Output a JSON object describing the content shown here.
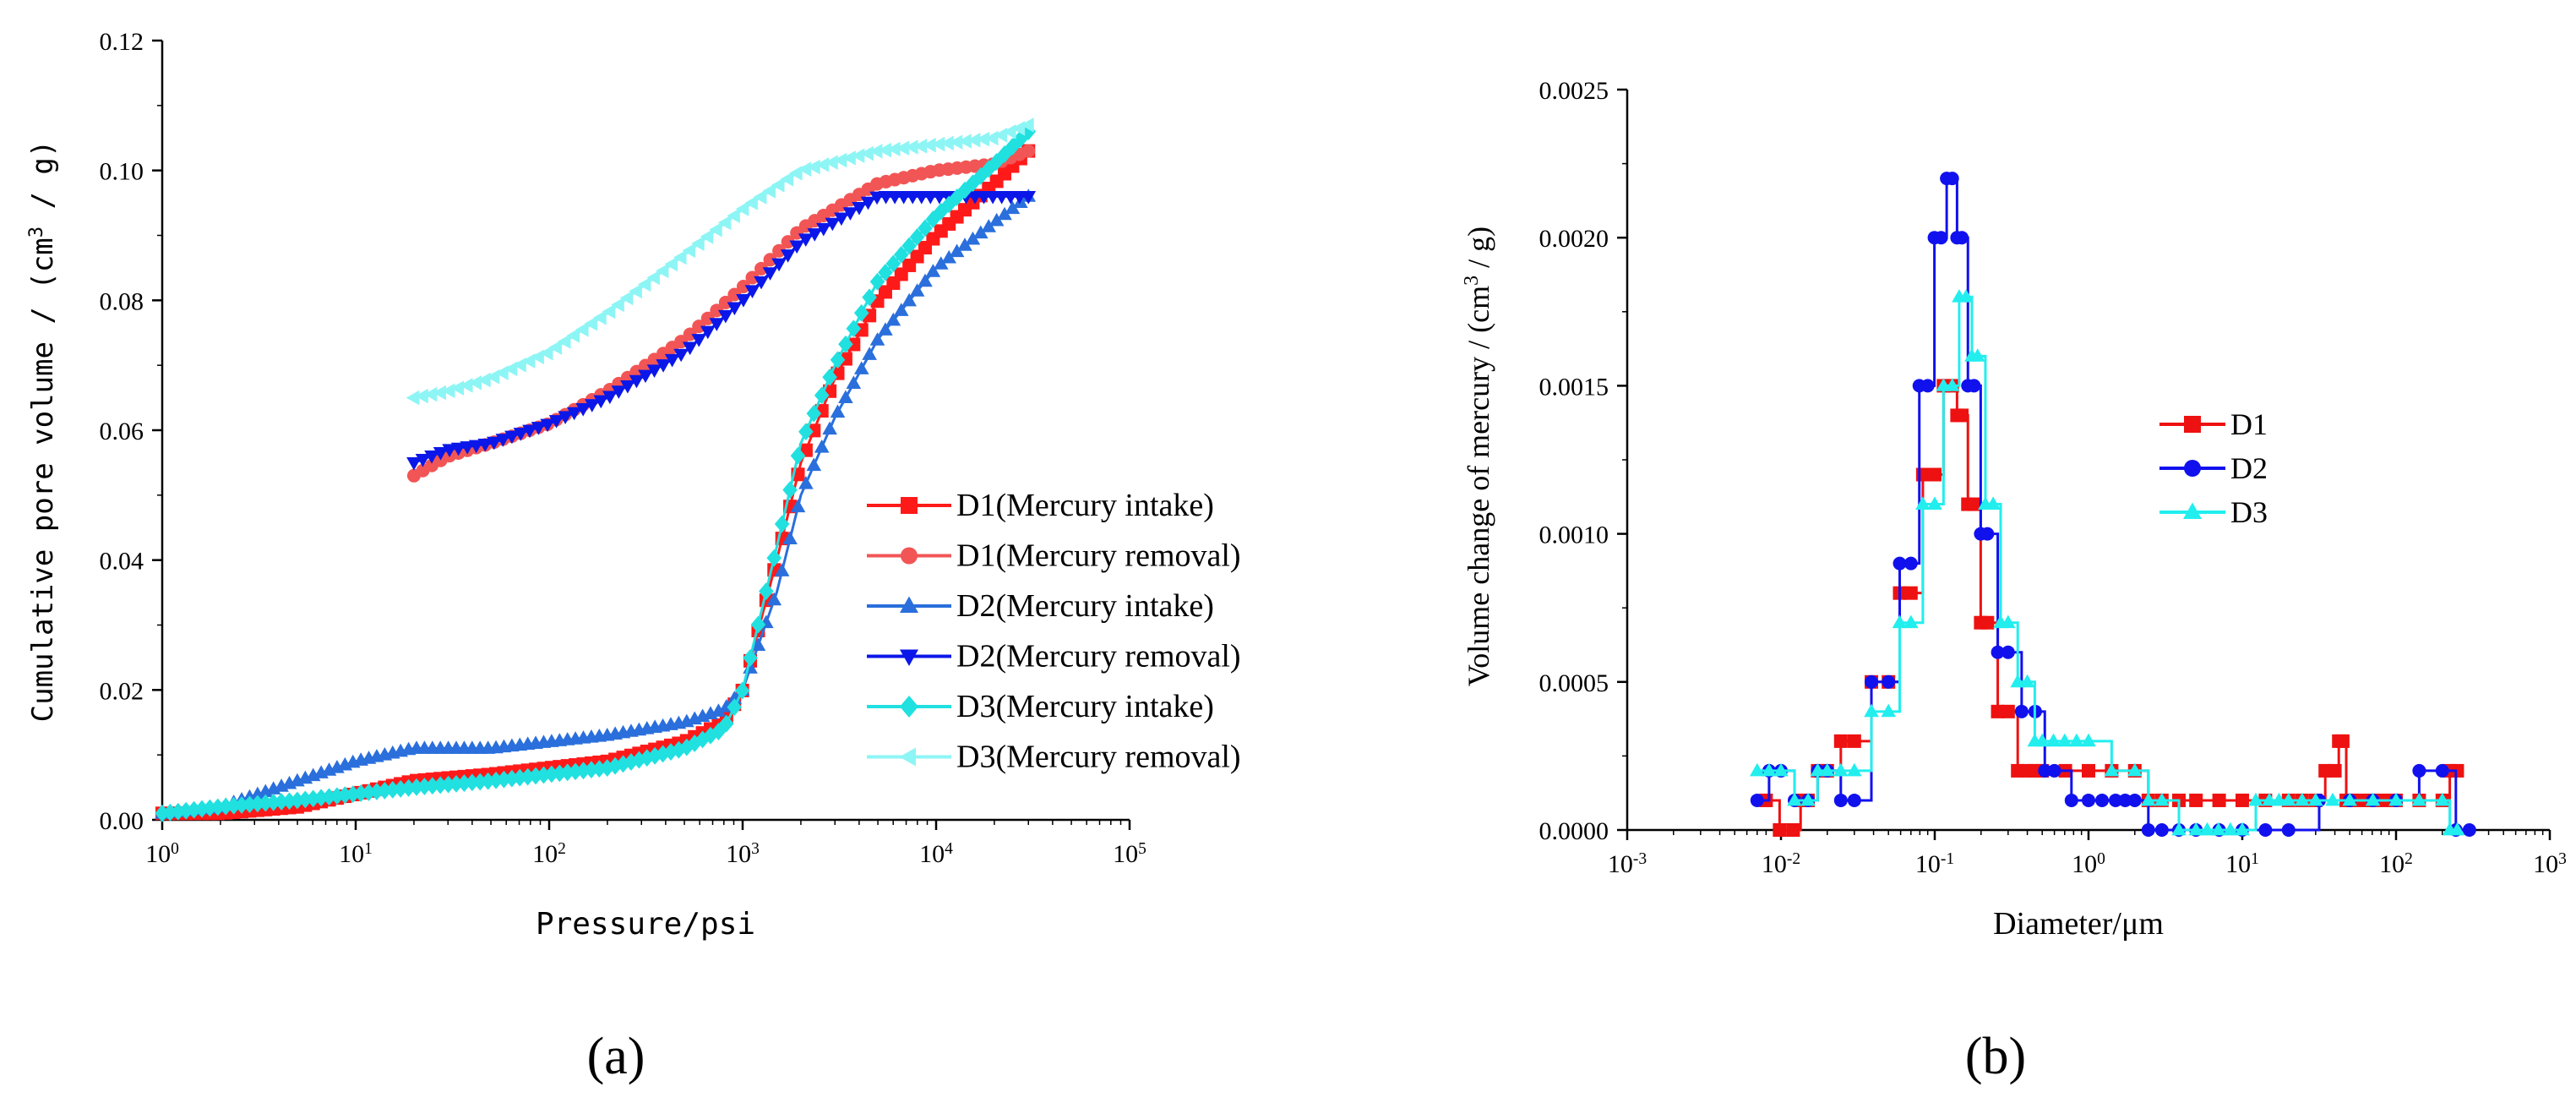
{
  "panel_labels": [
    "(a)",
    "(b)"
  ],
  "colors": {
    "d1_intake": "#ff1a1a",
    "d1_removal": "#f25555",
    "d2_intake": "#2a6fdc",
    "d2_removal": "#0b17e8",
    "d3_intake": "#21e0e0",
    "d3_removal": "#8ef5f5",
    "b_d1": "#ee1111",
    "b_d2": "#1111ee",
    "b_d3": "#22eeee"
  },
  "chart_data": [
    {
      "type": "line",
      "panel": "a",
      "title": "",
      "xlabel": "Pressure/psi",
      "ylabel": "Cumulative pore volume / (cm3 / g)",
      "ylabel_parts": {
        "pre": "Cumulative pore volume / (cm",
        "sup": "3",
        "post": " / g)"
      },
      "xscale": "log",
      "xlim": [
        1,
        100000
      ],
      "ylim": [
        0,
        0.12
      ],
      "x_ticks": [
        {
          "base": "10",
          "exp": "0",
          "value": 1
        },
        {
          "base": "10",
          "exp": "1",
          "value": 10
        },
        {
          "base": "10",
          "exp": "2",
          "value": 100
        },
        {
          "base": "10",
          "exp": "3",
          "value": 1000
        },
        {
          "base": "10",
          "exp": "4",
          "value": 10000
        },
        {
          "base": "10",
          "exp": "5",
          "value": 100000
        }
      ],
      "y_ticks": [
        "0.00",
        "0.02",
        "0.04",
        "0.06",
        "0.08",
        "0.10",
        "0.12"
      ],
      "legend_position": "right",
      "series": [
        {
          "name": "D1(Mercury intake)",
          "marker": "square",
          "color_key": "d1_intake",
          "x": [
            1,
            2,
            5,
            10,
            20,
            50,
            100,
            200,
            500,
            800,
            1000,
            1500,
            2000,
            3000,
            5000,
            10000,
            20000,
            30000
          ],
          "y": [
            0.001,
            0.001,
            0.002,
            0.004,
            0.006,
            0.007,
            0.008,
            0.009,
            0.012,
            0.015,
            0.02,
            0.04,
            0.055,
            0.068,
            0.08,
            0.09,
            0.098,
            0.103
          ]
        },
        {
          "name": "D1(Mercury removal)",
          "marker": "circle",
          "color_key": "d1_removal",
          "x": [
            20,
            30,
            50,
            100,
            200,
            500,
            1000,
            2000,
            5000,
            10000,
            20000,
            30000
          ],
          "y": [
            0.053,
            0.056,
            0.058,
            0.061,
            0.066,
            0.074,
            0.082,
            0.091,
            0.098,
            0.1,
            0.101,
            0.103
          ]
        },
        {
          "name": "D2(Mercury intake)",
          "marker": "triangle",
          "color_key": "d2_intake",
          "x": [
            1,
            2,
            5,
            10,
            20,
            30,
            50,
            100,
            200,
            500,
            800,
            1000,
            1500,
            2000,
            3000,
            5000,
            10000,
            20000,
            30000
          ],
          "y": [
            0.001,
            0.002,
            0.006,
            0.009,
            0.011,
            0.011,
            0.011,
            0.012,
            0.013,
            0.015,
            0.017,
            0.02,
            0.035,
            0.05,
            0.062,
            0.074,
            0.085,
            0.092,
            0.096
          ]
        },
        {
          "name": "D2(Mercury removal)",
          "marker": "triangle-down",
          "color_key": "d2_removal",
          "x": [
            20,
            30,
            50,
            100,
            200,
            500,
            1000,
            2000,
            5000,
            10000,
            20000,
            30000
          ],
          "y": [
            0.055,
            0.057,
            0.058,
            0.061,
            0.065,
            0.072,
            0.08,
            0.089,
            0.096,
            0.096,
            0.096,
            0.096
          ]
        },
        {
          "name": "D3(Mercury intake)",
          "marker": "diamond",
          "color_key": "d3_intake",
          "x": [
            1,
            2,
            5,
            10,
            20,
            50,
            100,
            200,
            500,
            800,
            1000,
            1500,
            2000,
            3000,
            5000,
            10000,
            20000,
            30000
          ],
          "y": [
            0.001,
            0.002,
            0.003,
            0.004,
            0.005,
            0.006,
            0.007,
            0.008,
            0.011,
            0.014,
            0.02,
            0.042,
            0.058,
            0.07,
            0.083,
            0.093,
            0.101,
            0.106
          ]
        },
        {
          "name": "D3(Mercury removal)",
          "marker": "triangle-left",
          "color_key": "d3_removal",
          "x": [
            20,
            30,
            50,
            100,
            200,
            500,
            1000,
            2000,
            5000,
            10000,
            20000,
            30000
          ],
          "y": [
            0.065,
            0.066,
            0.068,
            0.072,
            0.078,
            0.087,
            0.094,
            0.1,
            0.103,
            0.104,
            0.105,
            0.107
          ]
        }
      ]
    },
    {
      "type": "line",
      "panel": "b",
      "title": "",
      "xlabel": "Diameter/μm",
      "ylabel": "Volume change of mercury / (cm3 / g)",
      "ylabel_parts": {
        "pre": "Volume change of mercury / (cm",
        "sup": "3",
        "post": " / g)"
      },
      "xscale": "log",
      "xlim": [
        0.001,
        1000
      ],
      "ylim": [
        0,
        0.0025
      ],
      "x_ticks": [
        {
          "base": "10",
          "exp": "-3",
          "value": 0.001
        },
        {
          "base": "10",
          "exp": "-2",
          "value": 0.01
        },
        {
          "base": "10",
          "exp": "-1",
          "value": 0.1
        },
        {
          "base": "10",
          "exp": "0",
          "value": 1
        },
        {
          "base": "10",
          "exp": "1",
          "value": 10
        },
        {
          "base": "10",
          "exp": "2",
          "value": 100
        },
        {
          "base": "10",
          "exp": "3",
          "value": 1000
        }
      ],
      "y_ticks": [
        "0.0000",
        "0.0005",
        "0.0010",
        "0.0015",
        "0.0020",
        "0.0025"
      ],
      "legend_position": "right",
      "series": [
        {
          "name": "D1",
          "marker": "square",
          "color_key": "b_d1",
          "x": [
            0.008,
            0.012,
            0.015,
            0.02,
            0.03,
            0.05,
            0.07,
            0.1,
            0.13,
            0.15,
            0.18,
            0.22,
            0.3,
            0.4,
            0.5,
            1,
            2,
            3,
            5,
            10,
            20,
            30,
            40,
            45,
            50,
            70,
            100,
            200,
            250
          ],
          "y": [
            0.0001,
            0.0,
            0.0001,
            0.0002,
            0.0003,
            0.0005,
            0.0008,
            0.0012,
            0.0015,
            0.0014,
            0.0011,
            0.0007,
            0.0004,
            0.0002,
            0.0002,
            0.0002,
            0.0002,
            0.0001,
            0.0001,
            0.0001,
            0.0001,
            0.0001,
            0.0002,
            0.0003,
            0.0001,
            0.0001,
            0.0001,
            0.0001,
            0.0002
          ]
        },
        {
          "name": "D2",
          "marker": "circle",
          "color_key": "b_d2",
          "x": [
            0.007,
            0.01,
            0.015,
            0.02,
            0.03,
            0.05,
            0.07,
            0.09,
            0.11,
            0.13,
            0.15,
            0.18,
            0.22,
            0.3,
            0.45,
            0.6,
            1,
            1.5,
            2,
            3,
            5,
            10,
            20,
            50,
            100,
            200,
            300
          ],
          "y": [
            0.0001,
            0.0002,
            0.0001,
            0.0002,
            0.0001,
            0.0005,
            0.0009,
            0.0015,
            0.002,
            0.0022,
            0.002,
            0.0015,
            0.001,
            0.0006,
            0.0004,
            0.0002,
            0.0001,
            0.0001,
            0.0001,
            0.0,
            0.0,
            0.0,
            0.0,
            0.0001,
            0.0001,
            0.0002,
            0.0
          ]
        },
        {
          "name": "D3",
          "marker": "triangle",
          "color_key": "b_d3",
          "x": [
            0.007,
            0.01,
            0.015,
            0.02,
            0.03,
            0.05,
            0.07,
            0.1,
            0.13,
            0.16,
            0.19,
            0.24,
            0.3,
            0.4,
            0.5,
            0.7,
            1,
            2,
            3,
            5,
            7,
            10,
            15,
            20,
            30,
            50,
            100,
            200,
            250
          ],
          "y": [
            0.0002,
            0.0002,
            0.0001,
            0.0002,
            0.0002,
            0.0004,
            0.0007,
            0.0011,
            0.0015,
            0.0018,
            0.0016,
            0.0011,
            0.0007,
            0.0005,
            0.0003,
            0.0003,
            0.0003,
            0.0002,
            0.0001,
            0.0,
            0.0,
            0.0,
            0.0001,
            0.0001,
            0.0001,
            0.0001,
            0.0001,
            0.0001,
            0.0
          ]
        }
      ]
    }
  ]
}
